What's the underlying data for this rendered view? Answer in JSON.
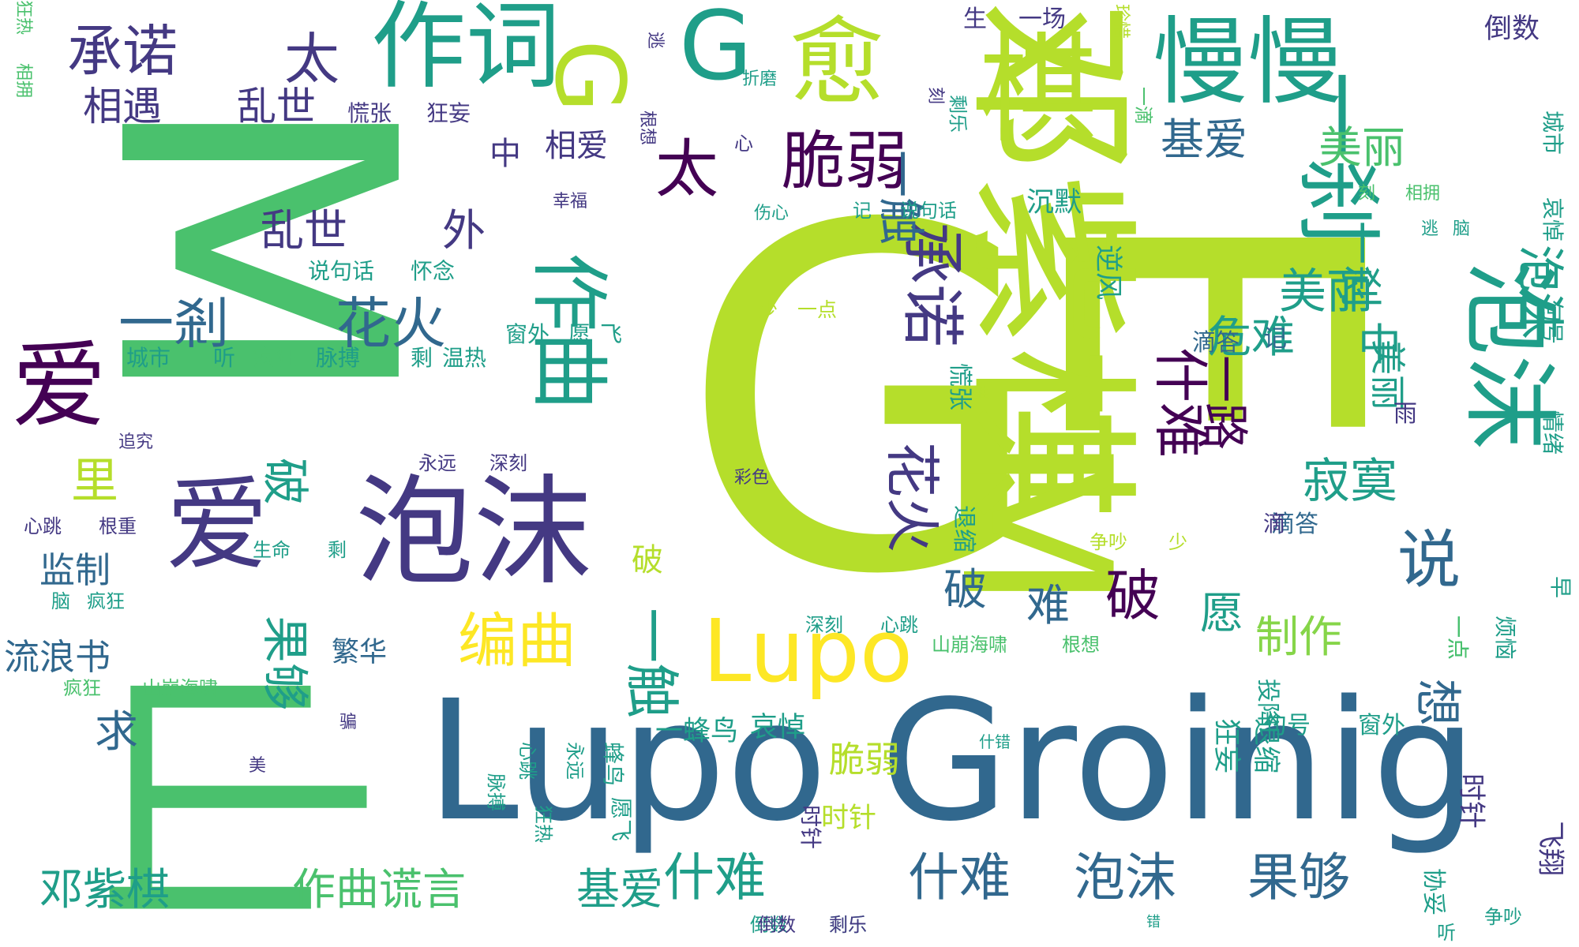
{
  "palette": {
    "light_green": "#b5de2b",
    "green": "#4ac16d",
    "teal": "#1f9e89",
    "blue": "#31688e",
    "purple": "#443983",
    "dark": "#440154",
    "yellow": "#fde725",
    "lime": "#86d549"
  },
  "words": [
    {
      "text": "G",
      "color": "light_green"
    },
    {
      "text": "M",
      "color": "green"
    },
    {
      "text": "E",
      "color": "light_green"
    },
    {
      "text": "山",
      "color": "green"
    },
    {
      "text": "Lupo Groinig",
      "color": "blue"
    },
    {
      "text": "邓紫棋",
      "color": "light_green"
    },
    {
      "text": "泡沫",
      "color": "purple"
    },
    {
      "text": "爱",
      "color": "purple"
    },
    {
      "text": "爱",
      "color": "dark"
    },
    {
      "text": "作词",
      "color": "teal"
    },
    {
      "text": "慢慢",
      "color": "teal"
    },
    {
      "text": "一刹",
      "color": "teal"
    },
    {
      "text": "泡沫",
      "color": "teal"
    },
    {
      "text": "M",
      "color": "light_green"
    },
    {
      "text": "Lupo",
      "color": "yellow"
    },
    {
      "text": "G",
      "color": "teal"
    },
    {
      "text": "G",
      "color": "light_green"
    },
    {
      "text": "愈",
      "color": "light_green"
    },
    {
      "text": "棋",
      "color": "light_green"
    },
    {
      "text": "承诺",
      "color": "purple"
    },
    {
      "text": "太",
      "color": "purple"
    },
    {
      "text": "脆弱",
      "color": "dark"
    },
    {
      "text": "太",
      "color": "dark"
    },
    {
      "text": "作曲",
      "color": "teal"
    },
    {
      "text": "一剎",
      "color": "blue"
    },
    {
      "text": "花火",
      "color": "blue"
    },
    {
      "text": "承诺",
      "color": "purple"
    },
    {
      "text": "相遇",
      "color": "purple"
    },
    {
      "text": "乱世",
      "color": "purple"
    },
    {
      "text": "乱世",
      "color": "purple"
    },
    {
      "text": "外",
      "color": "purple"
    },
    {
      "text": "什难",
      "color": "dark"
    },
    {
      "text": "一路",
      "color": "dark"
    },
    {
      "text": "破",
      "color": "dark"
    },
    {
      "text": "花火",
      "color": "purple"
    },
    {
      "text": "一触",
      "color": "blue"
    },
    {
      "text": "编曲",
      "color": "yellow"
    },
    {
      "text": "一触",
      "color": "teal"
    },
    {
      "text": "说",
      "color": "blue"
    },
    {
      "text": "破",
      "color": "blue"
    },
    {
      "text": "难",
      "color": "blue"
    },
    {
      "text": "寂寞",
      "color": "teal"
    },
    {
      "text": "美丽",
      "color": "teal"
    },
    {
      "text": "泡沫",
      "color": "teal"
    },
    {
      "text": "美丽",
      "color": "green"
    },
    {
      "text": "危难",
      "color": "teal"
    },
    {
      "text": "中",
      "color": "teal"
    },
    {
      "text": "制作",
      "color": "lime"
    },
    {
      "text": "愿",
      "color": "teal"
    },
    {
      "text": "想",
      "color": "blue"
    },
    {
      "text": "里",
      "color": "light_green"
    },
    {
      "text": "破",
      "color": "teal"
    },
    {
      "text": "果够",
      "color": "teal"
    },
    {
      "text": "求",
      "color": "blue"
    },
    {
      "text": "流浪书",
      "color": "blue"
    },
    {
      "text": "监制",
      "color": "blue"
    },
    {
      "text": "邓紫棋",
      "color": "teal"
    },
    {
      "text": "作曲谎言",
      "color": "green"
    },
    {
      "text": "基爱",
      "color": "teal"
    },
    {
      "text": "什难",
      "color": "teal"
    },
    {
      "text": "什难",
      "color": "blue"
    },
    {
      "text": "泡沫",
      "color": "blue"
    },
    {
      "text": "果够",
      "color": "blue"
    },
    {
      "text": "脆弱",
      "color": "light_green"
    },
    {
      "text": "时针",
      "color": "light_green"
    },
    {
      "text": "繁华",
      "color": "blue"
    },
    {
      "text": "一蜂鸟",
      "color": "teal"
    },
    {
      "text": "哀悼",
      "color": "teal"
    },
    {
      "text": "狂妄",
      "color": "teal"
    },
    {
      "text": "退缩",
      "color": "teal"
    },
    {
      "text": "句号",
      "color": "teal"
    },
    {
      "text": "窗外",
      "color": "teal"
    },
    {
      "text": "滴答",
      "color": "blue"
    },
    {
      "text": "倒数",
      "color": "purple"
    },
    {
      "text": "一刹",
      "color": "teal"
    },
    {
      "text": "基爱",
      "color": "blue"
    },
    {
      "text": "美丽",
      "color": "teal"
    },
    {
      "text": "中",
      "color": "purple"
    },
    {
      "text": "相爱",
      "color": "purple"
    },
    {
      "text": "生",
      "color": "purple"
    },
    {
      "text": "一场",
      "color": "purple"
    },
    {
      "text": "沉默",
      "color": "teal"
    },
    {
      "text": "逆风",
      "color": "teal"
    },
    {
      "text": "滴答",
      "color": "blue"
    },
    {
      "text": "记",
      "color": "blue"
    },
    {
      "text": "一点",
      "color": "light_green"
    },
    {
      "text": "少",
      "color": "light_green"
    },
    {
      "text": "城市",
      "color": "teal"
    },
    {
      "text": "听",
      "color": "teal"
    },
    {
      "text": "疯狂",
      "color": "green"
    },
    {
      "text": "脉搏",
      "color": "teal"
    },
    {
      "text": "剩",
      "color": "teal"
    },
    {
      "text": "温热",
      "color": "teal"
    },
    {
      "text": "窗外",
      "color": "teal"
    },
    {
      "text": "愿",
      "color": "teal"
    },
    {
      "text": "飞",
      "color": "teal"
    },
    {
      "text": "说句话",
      "color": "teal"
    },
    {
      "text": "怀念",
      "color": "teal"
    },
    {
      "text": "慌张",
      "color": "purple"
    },
    {
      "text": "狂妄",
      "color": "purple"
    },
    {
      "text": "心跳",
      "color": "purple"
    },
    {
      "text": "根重",
      "color": "purple"
    },
    {
      "text": "永远",
      "color": "purple"
    },
    {
      "text": "深刻",
      "color": "purple"
    },
    {
      "text": "生命",
      "color": "teal"
    },
    {
      "text": "剩",
      "color": "teal"
    },
    {
      "text": "脑",
      "color": "teal"
    },
    {
      "text": "疯狂",
      "color": "teal"
    },
    {
      "text": "疯狂",
      "color": "green"
    },
    {
      "text": "山崩海啸",
      "color": "green"
    },
    {
      "text": "深刻",
      "color": "teal"
    },
    {
      "text": "心跳",
      "color": "teal"
    },
    {
      "text": "山崩海啸",
      "color": "green"
    },
    {
      "text": "根想",
      "color": "green"
    },
    {
      "text": "时针",
      "color": "purple"
    },
    {
      "text": "飞翔",
      "color": "purple"
    },
    {
      "text": "倒数",
      "color": "teal"
    },
    {
      "text": "剩乐",
      "color": "teal"
    },
    {
      "text": "一点",
      "color": "teal"
    },
    {
      "text": "烦恼",
      "color": "teal"
    },
    {
      "text": "早",
      "color": "teal"
    },
    {
      "text": "滴",
      "color": "purple"
    },
    {
      "text": "句号",
      "color": "teal"
    },
    {
      "text": "情绪",
      "color": "teal"
    },
    {
      "text": "哀悼",
      "color": "teal"
    },
    {
      "text": "城市",
      "color": "teal"
    },
    {
      "text": "逃",
      "color": "teal"
    },
    {
      "text": "脑",
      "color": "teal"
    },
    {
      "text": "刻",
      "color": "green"
    },
    {
      "text": "相拥",
      "color": "green"
    },
    {
      "text": "记",
      "color": "teal"
    },
    {
      "text": "说句话",
      "color": "teal"
    },
    {
      "text": "伤心",
      "color": "teal"
    },
    {
      "text": "幸福",
      "color": "purple"
    },
    {
      "text": "折磨",
      "color": "teal"
    },
    {
      "text": "追究",
      "color": "purple"
    },
    {
      "text": "彩色",
      "color": "purple"
    },
    {
      "text": "什错",
      "color": "teal"
    },
    {
      "text": "美",
      "color": "purple"
    },
    {
      "text": "骗",
      "color": "purple"
    },
    {
      "text": "争吵",
      "color": "light_green"
    },
    {
      "text": "少",
      "color": "light_green"
    },
    {
      "text": "雨",
      "color": "purple"
    },
    {
      "text": "珍惜",
      "color": "light_green"
    },
    {
      "text": "根想",
      "color": "purple"
    },
    {
      "text": "逃",
      "color": "purple"
    },
    {
      "text": "刻",
      "color": "purple"
    },
    {
      "text": "相拥",
      "color": "green"
    },
    {
      "text": "狂热",
      "color": "green"
    },
    {
      "text": "心",
      "color": "purple"
    },
    {
      "text": "慌张",
      "color": "teal"
    },
    {
      "text": "胜",
      "color": "light_green"
    },
    {
      "text": "退缩",
      "color": "teal"
    },
    {
      "text": "投降",
      "color": "teal"
    },
    {
      "text": "脉搏",
      "color": "teal"
    },
    {
      "text": "狂热",
      "color": "teal"
    },
    {
      "text": "心跳",
      "color": "teal"
    },
    {
      "text": "永远",
      "color": "teal"
    },
    {
      "text": "协妥",
      "color": "teal"
    },
    {
      "text": "听",
      "color": "teal"
    },
    {
      "text": "争吵",
      "color": "teal"
    },
    {
      "text": "错",
      "color": "teal"
    },
    {
      "text": "倒数",
      "color": "purple"
    },
    {
      "text": "剩乐",
      "color": "purple"
    },
    {
      "text": "蜂鸟",
      "color": "teal"
    },
    {
      "text": "时针",
      "color": "purple"
    },
    {
      "text": "愿飞",
      "color": "teal"
    },
    {
      "text": "一点",
      "color": "green"
    },
    {
      "text": "一滴",
      "color": "green"
    },
    {
      "text": "剩乐",
      "color": "teal"
    },
    {
      "text": "破",
      "color": "light_green"
    }
  ]
}
